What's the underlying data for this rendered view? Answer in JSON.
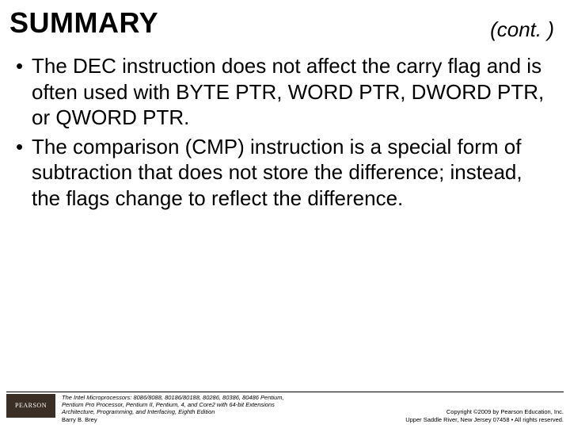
{
  "header": {
    "title": "SUMMARY",
    "cont": "(cont. )"
  },
  "bullets": [
    "The DEC instruction does not affect the carry flag and is often used with BYTE PTR, WORD PTR, DWORD PTR, or QWORD PTR.",
    "The comparison (CMP) instruction is a special form of subtraction that does not store the difference; instead, the flags change to reflect the difference."
  ],
  "footer": {
    "logo_text": "PEARSON",
    "citation_line1": "The Intel Microprocessors: 8086/8088, 80186/80188, 80286, 80386, 80486 Pentium,",
    "citation_line2": "Pentium Pro Processor, Pentium II, Pentium, 4, and Core2 with 64-bit Extensions",
    "citation_line3": "Architecture, Programming, and Interfacing, Eighth Edition",
    "citation_author": "Barry B. Brey",
    "copyright_line1": "Copyright ©2009 by Pearson Education, Inc.",
    "copyright_line2": "Upper Saddle River, New Jersey 07458 • All rights reserved."
  },
  "colors": {
    "text": "#000000",
    "background": "#ffffff",
    "logo_bg": "#3b2f25",
    "logo_text": "#ffffff",
    "rule": "#000000"
  }
}
